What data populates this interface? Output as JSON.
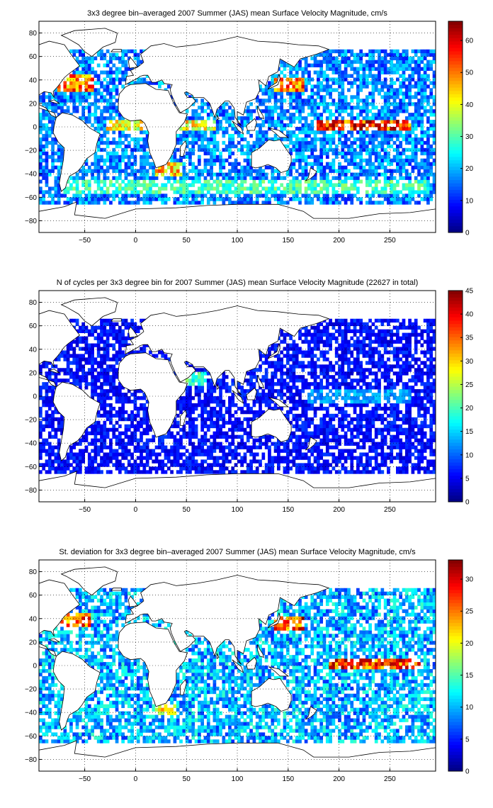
{
  "colors": {
    "land_fill": "#ffffff",
    "coastline": "#000000",
    "frame": "#000000",
    "grid": "#000000",
    "ocean_empty": "#ffffff"
  },
  "chart_data": [
    {
      "type": "heatmap",
      "title": "3x3 degree bin–averaged 2007 Summer (JAS) mean Surface Velocity Magnitude, cm/s",
      "xlim": [
        -95,
        295
      ],
      "ylim": [
        -90,
        90
      ],
      "x_ticks": [
        -50,
        0,
        50,
        100,
        150,
        200,
        250
      ],
      "y_ticks": [
        -80,
        -60,
        -40,
        -20,
        0,
        20,
        40,
        60,
        80
      ],
      "colorbar": {
        "min": 0,
        "max": 66,
        "ticks": [
          0,
          10,
          20,
          30,
          40,
          50,
          60
        ],
        "colormap": "jet"
      },
      "grid": "dotted",
      "bin_size_deg": 3,
      "data_bounds_lat": [
        -66,
        66
      ],
      "field_hotspots": [
        {
          "region": "Equatorial Pacific",
          "lon": [
            175,
            270
          ],
          "lat": [
            -3,
            6
          ],
          "value": 62
        },
        {
          "region": "Kuroshio",
          "lon": [
            135,
            165
          ],
          "lat": [
            30,
            42
          ],
          "value": 55
        },
        {
          "region": "Gulf Stream",
          "lon": [
            -78,
            -40
          ],
          "lat": [
            30,
            44
          ],
          "value": 55
        },
        {
          "region": "Agulhas",
          "lon": [
            20,
            45
          ],
          "lat": [
            -42,
            -30
          ],
          "value": 50
        },
        {
          "region": "Antarctic Circumpolar",
          "lon": [
            -70,
            290
          ],
          "lat": [
            -56,
            -44
          ],
          "value": 32
        },
        {
          "region": "Equatorial Atlantic/Indian",
          "lon": [
            -30,
            80
          ],
          "lat": [
            -3,
            5
          ],
          "value": 45
        }
      ],
      "background_level": 17
    },
    {
      "type": "heatmap",
      "title": "N of cycles per 3x3 degree bin for 2007 Summer (JAS) mean Surface Velocity Magnitude (22627 in total)",
      "xlim": [
        -95,
        295
      ],
      "ylim": [
        -90,
        90
      ],
      "x_ticks": [
        -50,
        0,
        50,
        100,
        150,
        200,
        250
      ],
      "y_ticks": [
        -80,
        -60,
        -40,
        -20,
        0,
        20,
        40,
        60,
        80
      ],
      "colorbar": {
        "min": 0,
        "max": 45,
        "ticks": [
          0,
          5,
          10,
          15,
          20,
          25,
          30,
          35,
          40,
          45
        ],
        "colormap": "jet"
      },
      "grid": "dotted",
      "bin_size_deg": 3,
      "data_bounds_lat": [
        -66,
        66
      ],
      "field_hotspots": [
        {
          "region": "Equatorial Pacific",
          "lon": [
            170,
            270
          ],
          "lat": [
            -6,
            6
          ],
          "value": 14
        },
        {
          "region": "Arabian Sea",
          "lon": [
            50,
            70
          ],
          "lat": [
            10,
            22
          ],
          "value": 22
        }
      ],
      "background_level": 6
    },
    {
      "type": "heatmap",
      "title": "St. deviation for 3x3 degree bin–averaged 2007 Summer (JAS) mean Surface Velocity Magnitude, cm/s",
      "xlim": [
        -95,
        295
      ],
      "ylim": [
        -90,
        90
      ],
      "x_ticks": [
        -50,
        0,
        50,
        100,
        150,
        200,
        250
      ],
      "y_ticks": [
        -80,
        -60,
        -40,
        -20,
        0,
        20,
        40,
        60,
        80
      ],
      "colorbar": {
        "min": 0,
        "max": 33,
        "ticks": [
          0,
          5,
          10,
          15,
          20,
          25,
          30
        ],
        "colormap": "jet"
      },
      "grid": "dotted",
      "bin_size_deg": 3,
      "data_bounds_lat": [
        -66,
        66
      ],
      "field_hotspots": [
        {
          "region": "Equatorial Pacific",
          "lon": [
            190,
            280
          ],
          "lat": [
            -3,
            6
          ],
          "value": 30
        },
        {
          "region": "Kuroshio",
          "lon": [
            135,
            165
          ],
          "lat": [
            30,
            42
          ],
          "value": 30
        },
        {
          "region": "Gulf Stream",
          "lon": [
            -78,
            -45
          ],
          "lat": [
            32,
            44
          ],
          "value": 28
        },
        {
          "region": "Agulhas",
          "lon": [
            20,
            40
          ],
          "lat": [
            -42,
            -32
          ],
          "value": 24
        }
      ],
      "background_level": 10
    }
  ]
}
